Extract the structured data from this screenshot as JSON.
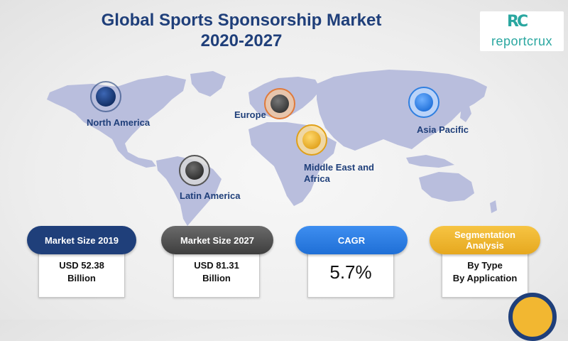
{
  "header": {
    "title_line1": "Global Sports Sponsorship Market",
    "title_line2": "2020-2027"
  },
  "logo": {
    "mark": "RC",
    "text": "reportcrux"
  },
  "regions": [
    {
      "label": "North America"
    },
    {
      "label": "Europe"
    },
    {
      "label": "Asia Pacific"
    },
    {
      "label": "Middle East and Africa"
    },
    {
      "label": "Latin America"
    }
  ],
  "cards": [
    {
      "title": "Market Size 2019",
      "lines": [
        "USD 52.38",
        "Billion"
      ],
      "color": "#1f3f7a"
    },
    {
      "title": "Market Size 2027",
      "lines": [
        "USD 81.31",
        "Billion"
      ],
      "color": "#555555"
    },
    {
      "title": "CAGR",
      "value": "5.7%",
      "color": "#2f7fe0"
    },
    {
      "title": "Segmentation Analysis",
      "lines": [
        "By Type",
        "By Application"
      ],
      "color": "#f2b731"
    }
  ],
  "colors": {
    "map": "#b9bedd",
    "title": "#1f3f7a",
    "brand": "#2aa7a0"
  }
}
